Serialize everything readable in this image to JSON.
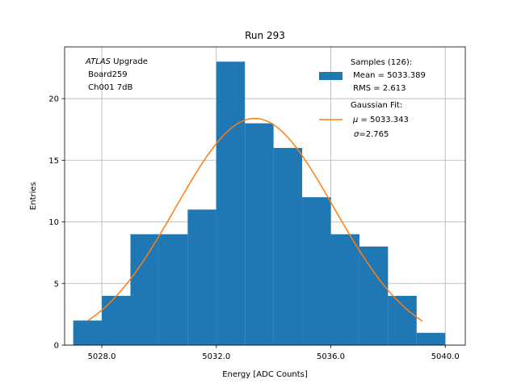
{
  "chart_data": {
    "type": "bar",
    "title": "Run 293",
    "xlabel": "Energy [ADC Counts]",
    "ylabel": "Entries",
    "xlim": [
      5026.7,
      5040.7
    ],
    "ylim": [
      0,
      24.2
    ],
    "xticks": [
      5028.0,
      5032.0,
      5036.0,
      5040.0
    ],
    "xtick_labels": [
      "5028.0",
      "5032.0",
      "5036.0",
      "5040.0"
    ],
    "yticks": [
      0,
      5,
      10,
      15,
      20
    ],
    "ytick_labels": [
      "0",
      "5",
      "10",
      "15",
      "20"
    ],
    "grid": true,
    "bin_edges": [
      5027,
      5028,
      5029,
      5030,
      5031,
      5032,
      5033,
      5034,
      5035,
      5036,
      5037,
      5038,
      5039,
      5040
    ],
    "counts": [
      2,
      4,
      9,
      9,
      11,
      23,
      18,
      16,
      12,
      9,
      8,
      4,
      1
    ],
    "bar_color": "#1f77b4",
    "fit": {
      "mu": 5033.343,
      "sigma": 2.765,
      "amplitude": 18.4,
      "x_range": [
        5027.5,
        5039.2
      ],
      "color": "#ff7f0e"
    },
    "annotation": {
      "italic_word": "ATLAS",
      "line1_rest": " Upgrade",
      "line2": " Board259",
      "line3": " Ch001 7dB"
    },
    "legend": {
      "placement": "top-right",
      "samples_line1": "Samples (126):",
      "samples_line2": " Mean = 5033.389",
      "samples_line3": " RMS = 2.613",
      "fit_line1": "Gaussian Fit:",
      "fit_line2_sym": "μ",
      "fit_line2_rest": " = 5033.343",
      "fit_line3_sym": "σ",
      "fit_line3_rest": "=2.765"
    }
  }
}
